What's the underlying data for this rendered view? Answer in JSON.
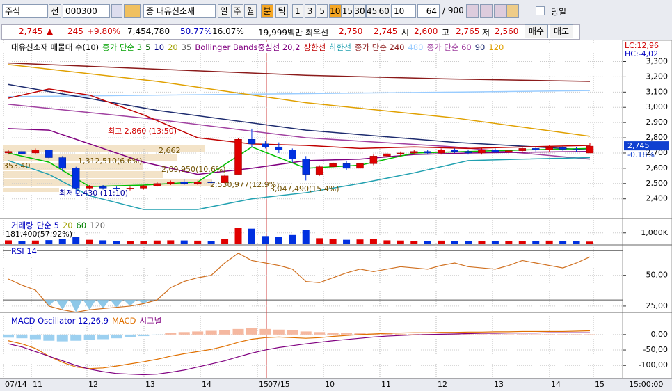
{
  "toolbar": {
    "market": "주식",
    "code_prefix": "전",
    "code": "000300",
    "stock_name": "증 대유신소재",
    "periods": [
      "일",
      "주",
      "월",
      "분",
      "틱"
    ],
    "intervals": [
      "1",
      "3",
      "5",
      "10",
      "15",
      "30",
      "45",
      "60"
    ],
    "interval_value": "10",
    "count": "64",
    "count_total": "/ 900",
    "today": "당일"
  },
  "quote": {
    "price": "2,745",
    "change_sign": "▲",
    "change": "245",
    "change_pct": "+9.80%",
    "volume": "7,454,780",
    "ratio1": "50.77%",
    "ratio2": "16.07%",
    "amount": "19,999백만",
    "best_label": "최우선",
    "ask": "2,750",
    "bid": "2,745",
    "open_label": "시",
    "open": "2,600",
    "high_label": "고",
    "high": "2,765",
    "low_label": "저",
    "low": "2,560",
    "buy": "매수",
    "sell": "매도"
  },
  "price_chart": {
    "legend": [
      {
        "text": "대유신소재 매물대 수(10)",
        "color": "#000000"
      },
      {
        "text": "종가 단순 3",
        "color": "#00a000"
      },
      {
        "text": "5",
        "color": "#006000"
      },
      {
        "text": "10",
        "color": "#000080"
      },
      {
        "text": "20",
        "color": "#a0a000"
      },
      {
        "text": "35",
        "color": "#606060"
      },
      {
        "text": "Bollinger Bands중심선 20,2",
        "color": "#800080"
      },
      {
        "text": "상한선",
        "color": "#c00000"
      },
      {
        "text": "하한선",
        "color": "#20a0b0"
      },
      {
        "text": "종가 단순 240",
        "color": "#8b1a1a"
      },
      {
        "text": "480",
        "color": "#99ccff"
      },
      {
        "text": "종가 단순 60",
        "color": "#a040a0"
      },
      {
        "text": "90",
        "color": "#1c2a6e"
      },
      {
        "text": "120",
        "color": "#e0a000"
      }
    ],
    "lc": "LC:12,96",
    "hc": "HC:-4,02",
    "ylim": [
      2280,
      3430
    ],
    "yticks": [
      {
        "value": 3300,
        "label": "3,300"
      },
      {
        "value": 3200,
        "label": "3,200"
      },
      {
        "value": 3100,
        "label": "3,100"
      },
      {
        "value": 3000,
        "label": "3,000"
      },
      {
        "value": 2900,
        "label": "2,900"
      },
      {
        "value": 2800,
        "label": "2,800"
      },
      {
        "value": 2700,
        "label": "2,700"
      },
      {
        "value": 2600,
        "label": "2,600"
      },
      {
        "value": 2500,
        "label": "2,500"
      },
      {
        "value": 2400,
        "label": "2,400"
      }
    ],
    "current": {
      "value": 2745,
      "label": "2,745"
    },
    "current_change": "-0.18%",
    "annotations": [
      "최고 2,860 (13:50)",
      "최저 2,430 (11:10)",
      "2,662",
      "1,312,510(6.6%)",
      "353,40",
      "2,09,950(10.6%)",
      "2,530,977(12.9%)",
      "3,047,490(15.4%)"
    ],
    "candles": [
      [
        2700,
        2720,
        2690,
        2710
      ],
      [
        2710,
        2720,
        2690,
        2695
      ],
      [
        2700,
        2730,
        2690,
        2720
      ],
      [
        2720,
        2720,
        2660,
        2670
      ],
      [
        2670,
        2680,
        2580,
        2600
      ],
      [
        2600,
        2610,
        2430,
        2470
      ],
      [
        2470,
        2490,
        2460,
        2480
      ],
      [
        2480,
        2490,
        2460,
        2470
      ],
      [
        2470,
        2480,
        2460,
        2465
      ],
      [
        2465,
        2480,
        2455,
        2470
      ],
      [
        2470,
        2490,
        2460,
        2485
      ],
      [
        2485,
        2510,
        2480,
        2500
      ],
      [
        2500,
        2520,
        2490,
        2510
      ],
      [
        2510,
        2530,
        2490,
        2500
      ],
      [
        2500,
        2520,
        2490,
        2510
      ],
      [
        2510,
        2520,
        2500,
        2505
      ],
      [
        2505,
        2560,
        2500,
        2550
      ],
      [
        2560,
        2800,
        2560,
        2790
      ],
      [
        2790,
        2860,
        2740,
        2760
      ],
      [
        2760,
        2780,
        2730,
        2740
      ],
      [
        2740,
        2770,
        2700,
        2720
      ],
      [
        2720,
        2730,
        2640,
        2660
      ],
      [
        2660,
        2680,
        2520,
        2560
      ],
      [
        2560,
        2620,
        2550,
        2610
      ],
      [
        2610,
        2640,
        2600,
        2630
      ],
      [
        2630,
        2650,
        2590,
        2600
      ],
      [
        2600,
        2640,
        2590,
        2630
      ],
      [
        2630,
        2690,
        2620,
        2680
      ],
      [
        2680,
        2700,
        2670,
        2695
      ],
      [
        2695,
        2710,
        2680,
        2700
      ],
      [
        2700,
        2720,
        2690,
        2710
      ],
      [
        2710,
        2720,
        2690,
        2700
      ],
      [
        2700,
        2730,
        2690,
        2720
      ],
      [
        2720,
        2730,
        2700,
        2710
      ],
      [
        2710,
        2720,
        2690,
        2700
      ],
      [
        2700,
        2730,
        2690,
        2720
      ],
      [
        2720,
        2730,
        2700,
        2705
      ],
      [
        2705,
        2720,
        2690,
        2715
      ],
      [
        2715,
        2740,
        2700,
        2730
      ],
      [
        2730,
        2740,
        2710,
        2720
      ],
      [
        2720,
        2750,
        2710,
        2735
      ],
      [
        2735,
        2745,
        2715,
        2725
      ],
      [
        2725,
        2740,
        2705,
        2720
      ],
      [
        2700,
        2765,
        2700,
        2745
      ]
    ],
    "lines": [
      {
        "color": "#8b1a1a",
        "x": [
          0,
          11,
          22,
          33,
          43
        ],
        "values": [
          3290,
          3250,
          3210,
          3185,
          3170
        ]
      },
      {
        "color": "#99ccff",
        "x": [
          0,
          11,
          22,
          33,
          43
        ],
        "values": [
          3070,
          3080,
          3090,
          3100,
          3110
        ]
      },
      {
        "color": "#e0a000",
        "x": [
          0,
          11,
          22,
          33,
          43
        ],
        "values": [
          3280,
          3170,
          3030,
          2930,
          2810
        ]
      },
      {
        "color": "#1c2a6e",
        "x": [
          0,
          11,
          22,
          33,
          43
        ],
        "values": [
          3150,
          2980,
          2850,
          2770,
          2720
        ]
      },
      {
        "color": "#a040a0",
        "x": [
          0,
          11,
          22,
          33,
          43
        ],
        "values": [
          3020,
          2920,
          2800,
          2740,
          2660
        ]
      },
      {
        "color": "#c00000",
        "x": [
          0,
          3,
          6,
          10,
          14,
          18,
          22,
          26,
          30,
          34,
          38,
          43
        ],
        "values": [
          3060,
          3120,
          3080,
          2950,
          2800,
          2760,
          2750,
          2730,
          2740,
          2730,
          2740,
          2750
        ]
      },
      {
        "color": "#800080",
        "x": [
          0,
          3,
          6,
          10,
          14,
          18,
          22,
          26,
          30,
          34,
          38,
          43
        ],
        "values": [
          2860,
          2850,
          2760,
          2640,
          2560,
          2600,
          2650,
          2660,
          2690,
          2700,
          2705,
          2710
        ]
      },
      {
        "color": "#20a0b0",
        "x": [
          0,
          3,
          6,
          10,
          14,
          18,
          22,
          26,
          30,
          34,
          38,
          43
        ],
        "values": [
          2650,
          2560,
          2420,
          2330,
          2330,
          2400,
          2440,
          2500,
          2570,
          2650,
          2660,
          2670
        ]
      },
      {
        "color": "#00c000",
        "x": [
          0,
          3,
          6,
          10,
          14,
          18,
          22,
          26,
          30,
          34,
          38,
          43
        ],
        "values": [
          2700,
          2640,
          2480,
          2490,
          2510,
          2740,
          2600,
          2620,
          2700,
          2710,
          2720,
          2730
        ]
      }
    ]
  },
  "volume_chart": {
    "title": "거래량",
    "legend": [
      {
        "text": "단순 5",
        "color": "#0000c0"
      },
      {
        "text": "20",
        "color": "#a0a000"
      },
      {
        "text": "60",
        "color": "#008000"
      },
      {
        "text": "120",
        "color": "#606060"
      }
    ],
    "value_label": "181,400(57.92%)",
    "ylim": [
      0,
      2100
    ],
    "yticks": [
      {
        "value": 1000,
        "label": "1,000K"
      }
    ],
    "values": [
      300,
      250,
      280,
      320,
      450,
      600,
      350,
      300,
      250,
      240,
      260,
      280,
      300,
      290,
      270,
      250,
      400,
      1500,
      1400,
      700,
      600,
      800,
      1300,
      500,
      400,
      350,
      380,
      450,
      300,
      280,
      260,
      250,
      270,
      260,
      240,
      250,
      230,
      240,
      260,
      250,
      270,
      240,
      230,
      180
    ]
  },
  "rsi_chart": {
    "title": "RSI 14",
    "ylim": [
      21,
      73
    ],
    "yticks": [
      {
        "value": 50,
        "label": "50,00"
      },
      {
        "value": 25,
        "label": "25,00"
      }
    ],
    "guides": [
      70,
      30
    ],
    "values": [
      47,
      42,
      38,
      25,
      22,
      20,
      22,
      23,
      24,
      25,
      27,
      30,
      40,
      45,
      48,
      50,
      60,
      68,
      62,
      60,
      58,
      55,
      45,
      44,
      48,
      52,
      55,
      53,
      55,
      57,
      56,
      55,
      58,
      60,
      57,
      56,
      55,
      58,
      62,
      60,
      58,
      56,
      60,
      65
    ]
  },
  "macd_chart": {
    "legend": [
      {
        "text": "MACD Oscillator 12,26,9",
        "color": "#0000c0"
      },
      {
        "text": "MACD",
        "color": "#e07000"
      },
      {
        "text": "시그널",
        "color": "#800080"
      }
    ],
    "ylim": [
      -140,
      65
    ],
    "yticks": [
      {
        "value": 0,
        "label": "0,00"
      },
      {
        "value": -50,
        "label": "-50,00"
      },
      {
        "value": -100,
        "label": "-100,00"
      }
    ],
    "oscillator": [
      -10,
      -12,
      -15,
      -20,
      -22,
      -20,
      -18,
      -15,
      -12,
      -8,
      -5,
      -2,
      5,
      8,
      10,
      12,
      15,
      18,
      20,
      18,
      16,
      14,
      10,
      8,
      6,
      5,
      4,
      3,
      3,
      2,
      2,
      2,
      1,
      1,
      1,
      1,
      1,
      1,
      1,
      1,
      1,
      1,
      1,
      1
    ],
    "macd": [
      -20,
      -30,
      -45,
      -70,
      -90,
      -105,
      -110,
      -108,
      -102,
      -95,
      -88,
      -80,
      -70,
      -62,
      -55,
      -48,
      -38,
      -25,
      -15,
      -10,
      -8,
      -10,
      -12,
      -10,
      -6,
      -3,
      0,
      2,
      4,
      5,
      6,
      6,
      7,
      7,
      8,
      8,
      9,
      9,
      10,
      10,
      10,
      10,
      11,
      12
    ],
    "signal": [
      -30,
      -40,
      -55,
      -70,
      -85,
      -100,
      -112,
      -120,
      -126,
      -128,
      -130,
      -128,
      -122,
      -115,
      -105,
      -95,
      -85,
      -72,
      -60,
      -50,
      -42,
      -36,
      -30,
      -25,
      -20,
      -16,
      -12,
      -8,
      -5,
      -3,
      -1,
      0,
      1,
      2,
      3,
      4,
      4,
      5,
      5,
      5,
      6,
      6,
      6,
      6
    ]
  },
  "time_axis": {
    "labels": [
      "07/14",
      "11",
      "12",
      "13",
      "14",
      "15",
      "07/15",
      "10",
      "11",
      "12",
      "13",
      "14",
      "15"
    ],
    "right": "15:00:00"
  }
}
